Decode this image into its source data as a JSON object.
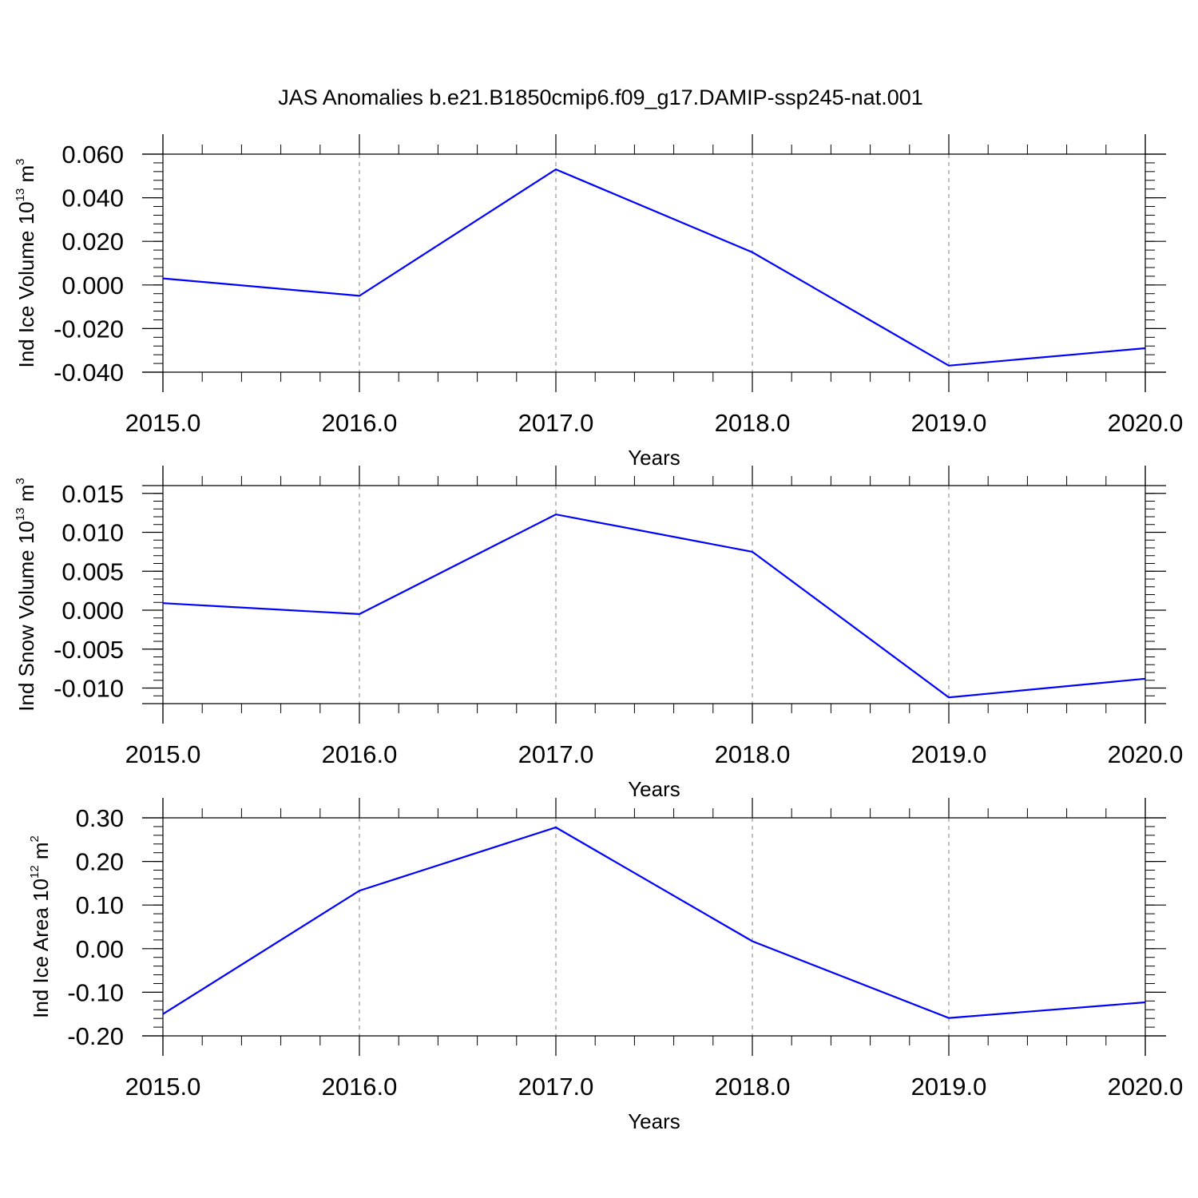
{
  "title": "JAS Anomalies b.e21.B1850cmip6.f09_g17.DAMIP-ssp245-nat.001",
  "colors": {
    "line": "#0000ff",
    "axis": "#000000",
    "grid": "#808080"
  },
  "chart_data": [
    {
      "type": "line",
      "ylabel_main": "Ind Ice Volume 10",
      "ylabel_exp": "13",
      "ylabel_unit": " m",
      "ylabel_unit_exp": "3",
      "xlabel": "Years",
      "x": [
        2015,
        2016,
        2017,
        2018,
        2019,
        2020
      ],
      "values": [
        0.003,
        -0.005,
        0.053,
        0.015,
        -0.037,
        -0.029
      ],
      "xlim": [
        2015,
        2020
      ],
      "ylim": [
        -0.04,
        0.06
      ],
      "xticks": [
        2015,
        2016,
        2017,
        2018,
        2019,
        2020
      ],
      "xtick_labels": [
        "2015.0",
        "2016.0",
        "2017.0",
        "2018.0",
        "2019.0",
        "2020.0"
      ],
      "yticks": [
        -0.04,
        -0.02,
        0.0,
        0.02,
        0.04,
        0.06
      ],
      "ytick_labels": [
        "-0.040",
        "-0.020",
        "0.000",
        "0.020",
        "0.040",
        "0.060"
      ],
      "ymajor_step": 0.02,
      "yminor_step": 0.004,
      "grid": "vertical-dashed"
    },
    {
      "type": "line",
      "ylabel_main": "Ind Snow Volume 10",
      "ylabel_exp": "13",
      "ylabel_unit": " m",
      "ylabel_unit_exp": "3",
      "xlabel": "Years",
      "x": [
        2015,
        2016,
        2017,
        2018,
        2019,
        2020
      ],
      "values": [
        0.0009,
        -0.0005,
        0.0123,
        0.0075,
        -0.0112,
        -0.0088
      ],
      "xlim": [
        2015,
        2020
      ],
      "ylim": [
        -0.012,
        0.016
      ],
      "xticks": [
        2015,
        2016,
        2017,
        2018,
        2019,
        2020
      ],
      "xtick_labels": [
        "2015.0",
        "2016.0",
        "2017.0",
        "2018.0",
        "2019.0",
        "2020.0"
      ],
      "yticks": [
        -0.01,
        -0.005,
        0.0,
        0.005,
        0.01,
        0.015
      ],
      "ytick_labels": [
        "-0.010",
        "-0.005",
        "0.000",
        "0.005",
        "0.010",
        "0.015"
      ],
      "ymajor_step": 0.005,
      "yminor_step": 0.001,
      "grid": "vertical-dashed"
    },
    {
      "type": "line",
      "ylabel_main": "Ind Ice Area 10",
      "ylabel_exp": "12",
      "ylabel_unit": " m",
      "ylabel_unit_exp": "2",
      "xlabel": "Years",
      "x": [
        2015,
        2016,
        2017,
        2018,
        2019,
        2020
      ],
      "values": [
        -0.15,
        0.133,
        0.278,
        0.017,
        -0.159,
        -0.123
      ],
      "xlim": [
        2015,
        2020
      ],
      "ylim": [
        -0.2,
        0.3
      ],
      "xticks": [
        2015,
        2016,
        2017,
        2018,
        2019,
        2020
      ],
      "xtick_labels": [
        "2015.0",
        "2016.0",
        "2017.0",
        "2018.0",
        "2019.0",
        "2020.0"
      ],
      "yticks": [
        -0.2,
        -0.1,
        0.0,
        0.1,
        0.2,
        0.3
      ],
      "ytick_labels": [
        "-0.20",
        "-0.10",
        "0.00",
        "0.10",
        "0.20",
        "0.30"
      ],
      "ymajor_step": 0.1,
      "yminor_step": 0.02,
      "grid": "vertical-dashed"
    }
  ]
}
